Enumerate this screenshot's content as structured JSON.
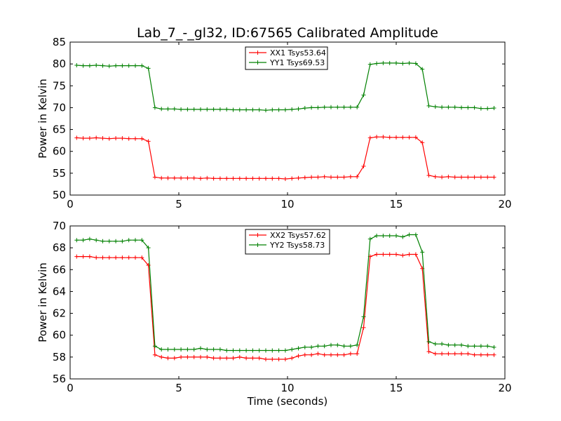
{
  "chart_data": [
    {
      "type": "line",
      "title": "Lab_7_-_gl32, ID:67565 Calibrated Amplitude",
      "xlabel": "",
      "ylabel": "Power in Kelvin",
      "xlim": [
        0,
        20
      ],
      "ylim": [
        50,
        85
      ],
      "xticks": [
        0,
        5,
        10,
        15,
        20
      ],
      "yticks": [
        50,
        55,
        60,
        65,
        70,
        75,
        80,
        85
      ],
      "grid": false,
      "legend_position": "top-center",
      "series": [
        {
          "name": "XX1 Tsys53.64",
          "color": "#ff0000",
          "x": [
            0.3,
            0.6,
            0.9,
            1.2,
            1.5,
            1.8,
            2.1,
            2.4,
            2.7,
            3.0,
            3.3,
            3.6,
            3.9,
            4.2,
            4.5,
            4.8,
            5.1,
            5.4,
            5.7,
            6.0,
            6.3,
            6.6,
            6.9,
            7.2,
            7.5,
            7.8,
            8.1,
            8.4,
            8.7,
            9.0,
            9.3,
            9.6,
            9.9,
            10.2,
            10.5,
            10.8,
            11.1,
            11.4,
            11.7,
            12.0,
            12.3,
            12.6,
            12.9,
            13.2,
            13.5,
            13.8,
            14.1,
            14.4,
            14.7,
            15.0,
            15.3,
            15.6,
            15.9,
            16.2,
            16.5,
            16.8,
            17.1,
            17.4,
            17.7,
            18.0,
            18.3,
            18.6,
            18.9,
            19.2,
            19.5
          ],
          "y": [
            63.1,
            63.0,
            63.0,
            63.1,
            63.0,
            62.9,
            63.0,
            63.0,
            62.9,
            62.9,
            62.9,
            62.3,
            54.1,
            53.9,
            53.9,
            53.9,
            53.9,
            53.9,
            53.9,
            53.8,
            53.9,
            53.8,
            53.8,
            53.8,
            53.8,
            53.8,
            53.8,
            53.8,
            53.8,
            53.8,
            53.8,
            53.8,
            53.7,
            53.8,
            53.9,
            54.0,
            54.1,
            54.1,
            54.2,
            54.1,
            54.1,
            54.1,
            54.2,
            54.2,
            56.6,
            63.1,
            63.3,
            63.3,
            63.2,
            63.2,
            63.2,
            63.2,
            63.2,
            62.0,
            54.5,
            54.2,
            54.1,
            54.2,
            54.1,
            54.1,
            54.1,
            54.1,
            54.1,
            54.1,
            54.1
          ]
        },
        {
          "name": "YY1 Tsys69.53",
          "color": "#008000",
          "x": [
            0.3,
            0.6,
            0.9,
            1.2,
            1.5,
            1.8,
            2.1,
            2.4,
            2.7,
            3.0,
            3.3,
            3.6,
            3.9,
            4.2,
            4.5,
            4.8,
            5.1,
            5.4,
            5.7,
            6.0,
            6.3,
            6.6,
            6.9,
            7.2,
            7.5,
            7.8,
            8.1,
            8.4,
            8.7,
            9.0,
            9.3,
            9.6,
            9.9,
            10.2,
            10.5,
            10.8,
            11.1,
            11.4,
            11.7,
            12.0,
            12.3,
            12.6,
            12.9,
            13.2,
            13.5,
            13.8,
            14.1,
            14.4,
            14.7,
            15.0,
            15.3,
            15.6,
            15.9,
            16.2,
            16.5,
            16.8,
            17.1,
            17.4,
            17.7,
            18.0,
            18.3,
            18.6,
            18.9,
            19.2,
            19.5
          ],
          "y": [
            79.7,
            79.6,
            79.6,
            79.7,
            79.6,
            79.5,
            79.6,
            79.6,
            79.6,
            79.6,
            79.6,
            79.0,
            70.0,
            69.7,
            69.7,
            69.7,
            69.6,
            69.6,
            69.6,
            69.6,
            69.6,
            69.6,
            69.6,
            69.6,
            69.5,
            69.5,
            69.5,
            69.5,
            69.5,
            69.4,
            69.5,
            69.5,
            69.5,
            69.6,
            69.7,
            69.9,
            70.0,
            70.0,
            70.1,
            70.1,
            70.1,
            70.1,
            70.1,
            70.1,
            72.9,
            79.9,
            80.1,
            80.2,
            80.2,
            80.2,
            80.1,
            80.2,
            80.1,
            78.8,
            70.4,
            70.2,
            70.1,
            70.1,
            70.1,
            70.0,
            70.0,
            70.0,
            69.8,
            69.8,
            69.9
          ]
        }
      ]
    },
    {
      "type": "line",
      "title": "",
      "xlabel": "Time (seconds)",
      "ylabel": "Power in Kelvin",
      "xlim": [
        0,
        20
      ],
      "ylim": [
        56,
        70
      ],
      "xticks": [
        0,
        5,
        10,
        15,
        20
      ],
      "yticks": [
        56,
        58,
        60,
        62,
        64,
        66,
        68,
        70
      ],
      "grid": false,
      "legend_position": "top-center",
      "series": [
        {
          "name": "XX2 Tsys57.62",
          "color": "#ff0000",
          "x": [
            0.3,
            0.6,
            0.9,
            1.2,
            1.5,
            1.8,
            2.1,
            2.4,
            2.7,
            3.0,
            3.3,
            3.6,
            3.9,
            4.2,
            4.5,
            4.8,
            5.1,
            5.4,
            5.7,
            6.0,
            6.3,
            6.6,
            6.9,
            7.2,
            7.5,
            7.8,
            8.1,
            8.4,
            8.7,
            9.0,
            9.3,
            9.6,
            9.9,
            10.2,
            10.5,
            10.8,
            11.1,
            11.4,
            11.7,
            12.0,
            12.3,
            12.6,
            12.9,
            13.2,
            13.5,
            13.8,
            14.1,
            14.4,
            14.7,
            15.0,
            15.3,
            15.6,
            15.9,
            16.2,
            16.5,
            16.8,
            17.1,
            17.4,
            17.7,
            18.0,
            18.3,
            18.6,
            18.9,
            19.2,
            19.5
          ],
          "y": [
            67.2,
            67.2,
            67.2,
            67.1,
            67.1,
            67.1,
            67.1,
            67.1,
            67.1,
            67.1,
            67.1,
            66.4,
            58.2,
            58.0,
            57.9,
            57.9,
            58.0,
            58.0,
            58.0,
            58.0,
            58.0,
            57.9,
            57.9,
            57.9,
            57.9,
            58.0,
            57.9,
            57.9,
            57.9,
            57.8,
            57.8,
            57.8,
            57.8,
            57.9,
            58.1,
            58.2,
            58.2,
            58.3,
            58.2,
            58.2,
            58.2,
            58.2,
            58.3,
            58.3,
            60.7,
            67.2,
            67.4,
            67.4,
            67.4,
            67.4,
            67.3,
            67.4,
            67.4,
            66.1,
            58.5,
            58.3,
            58.3,
            58.3,
            58.3,
            58.3,
            58.3,
            58.2,
            58.2,
            58.2,
            58.2
          ]
        },
        {
          "name": "YY2 Tsys58.73",
          "color": "#008000",
          "x": [
            0.3,
            0.6,
            0.9,
            1.2,
            1.5,
            1.8,
            2.1,
            2.4,
            2.7,
            3.0,
            3.3,
            3.6,
            3.9,
            4.2,
            4.5,
            4.8,
            5.1,
            5.4,
            5.7,
            6.0,
            6.3,
            6.6,
            6.9,
            7.2,
            7.5,
            7.8,
            8.1,
            8.4,
            8.7,
            9.0,
            9.3,
            9.6,
            9.9,
            10.2,
            10.5,
            10.8,
            11.1,
            11.4,
            11.7,
            12.0,
            12.3,
            12.6,
            12.9,
            13.2,
            13.5,
            13.8,
            14.1,
            14.4,
            14.7,
            15.0,
            15.3,
            15.6,
            15.9,
            16.2,
            16.5,
            16.8,
            17.1,
            17.4,
            17.7,
            18.0,
            18.3,
            18.6,
            18.9,
            19.2,
            19.5
          ],
          "y": [
            68.7,
            68.7,
            68.8,
            68.7,
            68.6,
            68.6,
            68.6,
            68.6,
            68.7,
            68.7,
            68.7,
            68.0,
            59.0,
            58.7,
            58.7,
            58.7,
            58.7,
            58.7,
            58.7,
            58.8,
            58.7,
            58.7,
            58.7,
            58.6,
            58.6,
            58.6,
            58.6,
            58.6,
            58.6,
            58.6,
            58.6,
            58.6,
            58.6,
            58.7,
            58.8,
            58.9,
            58.9,
            59.0,
            59.0,
            59.1,
            59.1,
            59.0,
            59.0,
            59.1,
            61.7,
            68.8,
            69.1,
            69.1,
            69.1,
            69.1,
            69.0,
            69.2,
            69.2,
            67.6,
            59.4,
            59.2,
            59.2,
            59.1,
            59.1,
            59.1,
            59.0,
            59.0,
            59.0,
            59.0,
            58.9
          ]
        }
      ]
    }
  ]
}
